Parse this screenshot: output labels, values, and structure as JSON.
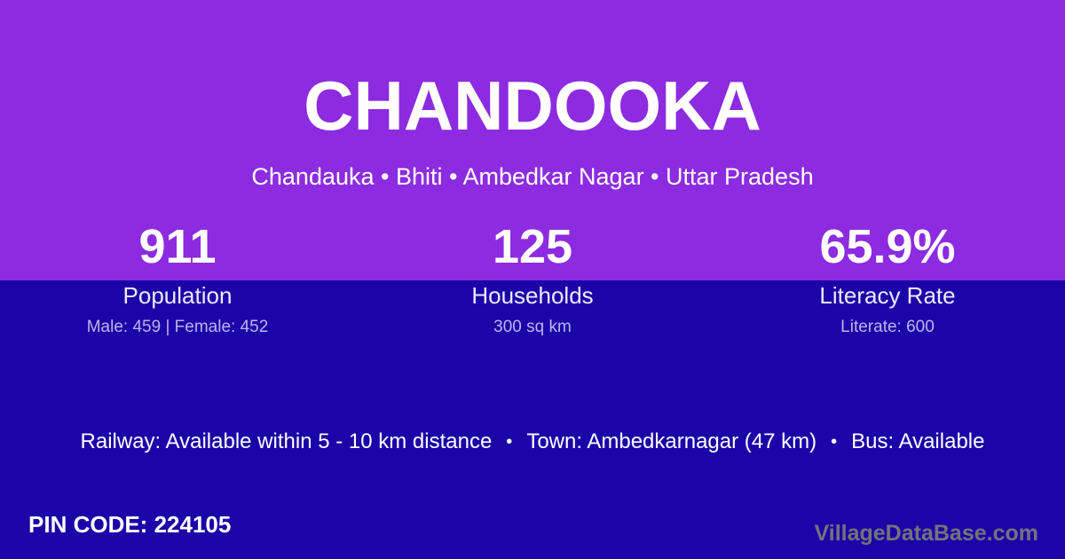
{
  "header": {
    "title": "CHANDOOKA",
    "subtitle": "Chandauka • Bhiti • Ambedkar Nagar • Uttar Pradesh"
  },
  "stats": [
    {
      "value": "911",
      "label": "Population",
      "detail": "Male: 459 | Female: 452"
    },
    {
      "value": "125",
      "label": "Households",
      "detail": "300 sq km"
    },
    {
      "value": "65.9%",
      "label": "Literacy Rate",
      "detail": "Literate: 600"
    }
  ],
  "info": {
    "railway": "Railway: Available within 5 - 10 km distance",
    "separator": "•",
    "town": "Town: Ambedkarnagar (47 km)",
    "bus": "Bus: Available"
  },
  "footer": {
    "pin_code": "PIN CODE: 224105",
    "watermark": "VillageDataBase.com"
  },
  "colors": {
    "top_background": "#8C2BE0",
    "bottom_background": "#1B04A8",
    "title_text": "#FFFFFF",
    "detail_text": "#BFB3EA",
    "watermark_text": "#73737B"
  }
}
